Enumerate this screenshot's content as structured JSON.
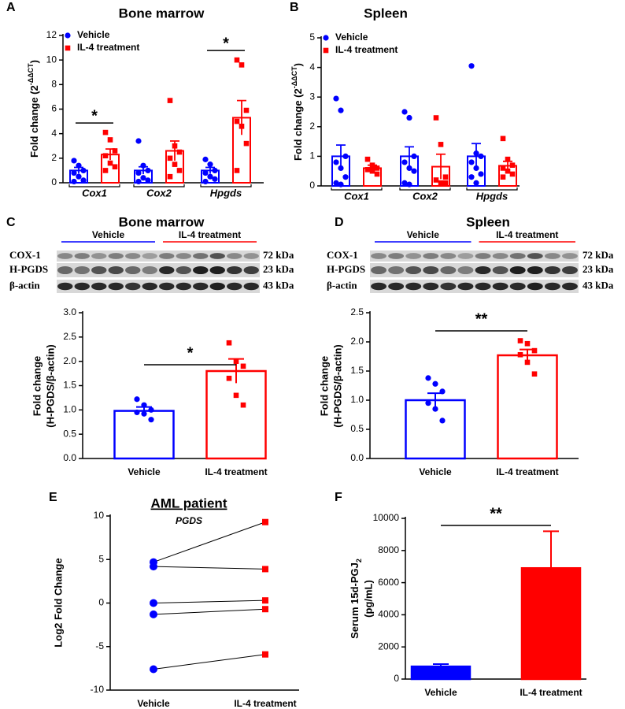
{
  "chart_data": [
    {
      "panel": "A",
      "type": "bar",
      "title": "Bone marrow",
      "y_label": [
        {
          "text": "Fold change (2",
          "sup": "-ΔΔCT",
          "end": ")"
        }
      ],
      "categories": [
        "Cox1",
        "Cox2",
        "Hpgds"
      ],
      "series": [
        {
          "name": "Vehicle",
          "color": "#0000ff",
          "values": [
            1.0,
            1.0,
            1.0
          ],
          "errors": [
            0.25,
            0.3,
            0.25
          ],
          "points": [
            [
              1.8,
              1.4,
              1.0,
              0.8,
              0.5,
              0.2,
              0.1
            ],
            [
              3.4,
              1.4,
              1.0,
              0.8,
              0.4,
              0.2,
              0.1
            ],
            [
              1.9,
              1.5,
              1.0,
              0.8,
              0.5,
              0.3,
              0.1
            ]
          ]
        },
        {
          "name": "IL-4 treatment",
          "color": "#ff0000",
          "values": [
            2.3,
            2.6,
            5.3
          ],
          "errors": [
            0.45,
            0.8,
            1.4
          ],
          "points": [
            [
              4.1,
              3.5,
              2.6,
              2.2,
              1.6,
              1.3,
              1.0
            ],
            [
              6.7,
              3.0,
              2.5,
              2.0,
              1.5,
              1.0,
              0.5
            ],
            [
              10.0,
              9.6,
              5.9,
              5.0,
              4.6,
              3.2,
              1.0
            ]
          ]
        }
      ],
      "annotations": [
        "*",
        null,
        "*"
      ],
      "ylim": [
        0,
        12
      ],
      "yticks": [
        0,
        2,
        4,
        6,
        8,
        10,
        12
      ]
    },
    {
      "panel": "B",
      "type": "bar",
      "title": "Spleen",
      "y_label": [
        {
          "text": "Fold change (2",
          "sup": "-ΔΔCT",
          "end": ")"
        }
      ],
      "categories": [
        "Cox1",
        "Cox2",
        "Hpgds"
      ],
      "series": [
        {
          "name": "Vehicle",
          "color": "#0000ff",
          "values": [
            1.0,
            1.0,
            1.0
          ],
          "errors": [
            0.38,
            0.32,
            0.43
          ],
          "points": [
            [
              2.95,
              2.55,
              1.0,
              0.8,
              0.6,
              0.3,
              0.1,
              0.05
            ],
            [
              2.5,
              2.3,
              1.0,
              0.8,
              0.6,
              0.5,
              0.1,
              0.05
            ],
            [
              4.05,
              1.1,
              1.0,
              0.8,
              0.6,
              0.4,
              0.3,
              0.1
            ]
          ]
        },
        {
          "name": "IL-4 treatment",
          "color": "#ff0000",
          "values": [
            0.6,
            0.65,
            0.68
          ],
          "errors": [
            0.1,
            0.42,
            0.15
          ],
          "points": [
            [
              0.9,
              0.7,
              0.6,
              0.55,
              0.5,
              0.4
            ],
            [
              2.3,
              1.4,
              0.3,
              0.2,
              0.1,
              0.1
            ],
            [
              1.6,
              0.9,
              0.7,
              0.6,
              0.5,
              0.4,
              0.3
            ]
          ]
        }
      ],
      "ylim": [
        0,
        5
      ],
      "yticks": [
        0,
        1,
        2,
        3,
        4,
        5
      ]
    },
    {
      "panel": "C",
      "type": "bar",
      "title": "Bone marrow",
      "blot": {
        "groups": [
          "Vehicle",
          "IL-4 treatment"
        ],
        "bands": [
          "COX-1",
          "H-PGDS",
          "β-actin"
        ],
        "sizes": [
          "72 kDa",
          "23 kDa",
          "43 kDa"
        ]
      },
      "y_label": [
        "Fold change",
        "(H-PGDS/β-actin)"
      ],
      "categories": [
        "Vehicle",
        "IL-4 treatment"
      ],
      "colors": [
        "#0000ff",
        "#ff0000"
      ],
      "filled": false,
      "values": [
        0.98,
        1.8
      ],
      "errors": [
        0.08,
        0.25
      ],
      "points": [
        [
          1.22,
          1.1,
          1.0,
          0.95,
          0.92,
          0.8
        ],
        [
          2.38,
          2.0,
          1.9,
          1.65,
          1.3,
          1.1
        ]
      ],
      "annotation": "*",
      "ylim": [
        0,
        3
      ],
      "yticks": [
        {
          "value": 0,
          "label": "0.0"
        },
        0.5,
        {
          "value": 1,
          "label": "1.0"
        },
        1.5,
        {
          "value": 2,
          "label": "2.0"
        },
        2.5,
        {
          "value": 3,
          "label": "3.0"
        }
      ]
    },
    {
      "panel": "D",
      "type": "bar",
      "title": "Spleen",
      "blot": {
        "groups": [
          "Vehicle",
          "IL-4 treatment"
        ],
        "bands": [
          "COX-1",
          "H-PGDS",
          "β-actin"
        ],
        "sizes": [
          "72 kDa",
          "23 kDa",
          "43 kDa"
        ]
      },
      "y_label": [
        "Fold change",
        "(H-PGDS/β-actin)"
      ],
      "categories": [
        "Vehicle",
        "IL-4 treatment"
      ],
      "colors": [
        "#0000ff",
        "#ff0000"
      ],
      "filled": false,
      "values": [
        1.0,
        1.77
      ],
      "errors": [
        0.12,
        0.1
      ],
      "points": [
        [
          1.38,
          1.28,
          1.15,
          0.95,
          0.85,
          0.65
        ],
        [
          2.02,
          1.97,
          1.85,
          1.78,
          1.65,
          1.45
        ]
      ],
      "annotation": "**",
      "ylim": [
        0,
        2.5
      ],
      "yticks": [
        {
          "value": 0,
          "label": "0.0"
        },
        0.5,
        {
          "value": 1,
          "label": "1.0"
        },
        1.5,
        {
          "value": 2,
          "label": "2.0"
        },
        2.5
      ]
    },
    {
      "panel": "E",
      "type": "paired",
      "title": "AML patient",
      "subtitle": "PGDS",
      "y_label": [
        "Log2 Fold Change"
      ],
      "categories": [
        "Vehicle",
        "IL-4 treatment"
      ],
      "colors": [
        "#0000ff",
        "#ff0000"
      ],
      "pairs": [
        [
          4.7,
          9.3
        ],
        [
          4.2,
          3.9
        ],
        [
          0.0,
          0.3
        ],
        [
          -1.3,
          -0.7
        ],
        [
          -7.6,
          -5.9
        ]
      ],
      "ylim": [
        -10,
        10
      ],
      "yticks": [
        -10,
        -5,
        0,
        5,
        10
      ]
    },
    {
      "panel": "F",
      "type": "bar",
      "y_label": [
        {
          "text": "Serum 15d-PGJ",
          "sub": "2"
        },
        "(pg/mL)"
      ],
      "categories": [
        "Vehicle",
        "IL-4 treatment"
      ],
      "colors": [
        "#0000ff",
        "#ff0000"
      ],
      "filled": true,
      "values": [
        780,
        6900
      ],
      "errors": [
        150,
        2300
      ],
      "annotation": "**",
      "ylim": [
        0,
        10000
      ],
      "yticks": [
        0,
        2000,
        4000,
        6000,
        8000,
        10000
      ]
    }
  ]
}
